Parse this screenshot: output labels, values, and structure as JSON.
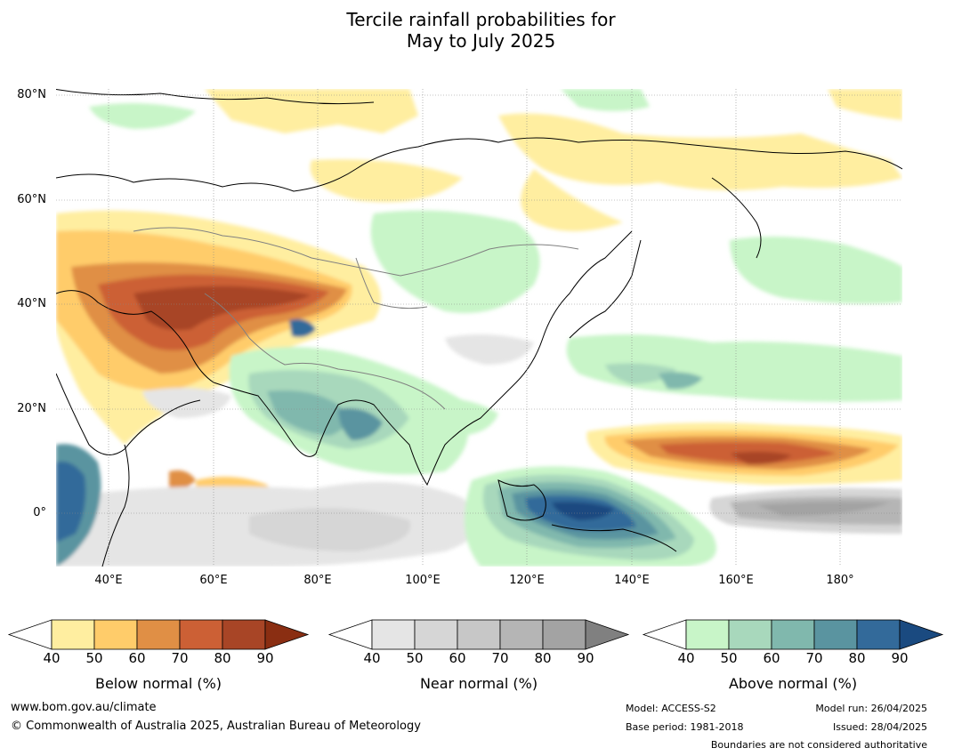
{
  "title_line1": "Tercile rainfall probabilities for",
  "title_line2": "May to July 2025",
  "map": {
    "lat_labels": [
      "80°N",
      "60°N",
      "40°N",
      "20°N",
      "0°"
    ],
    "lon_labels": [
      "40°E",
      "60°E",
      "80°E",
      "100°E",
      "120°E",
      "140°E",
      "160°E",
      "180°"
    ],
    "ocean_color": "#ffffff",
    "coast_color": "#000000",
    "border_color": "#808080"
  },
  "colorbars": [
    {
      "title": "Below normal (%)",
      "ticks": [
        "40",
        "50",
        "60",
        "70",
        "80",
        "90"
      ],
      "colors": [
        "#ffeea0",
        "#ffcc6a",
        "#e08f45",
        "#cc6035",
        "#a84526",
        "#8a2e12"
      ]
    },
    {
      "title": "Near normal (%)",
      "ticks": [
        "40",
        "50",
        "60",
        "70",
        "80",
        "90"
      ],
      "colors": [
        "#e5e5e5",
        "#d6d6d6",
        "#c7c7c7",
        "#b5b5b5",
        "#a3a3a3",
        "#808080"
      ]
    },
    {
      "title": "Above normal (%)",
      "ticks": [
        "40",
        "50",
        "60",
        "70",
        "80",
        "90"
      ],
      "colors": [
        "#c8f5c8",
        "#a8d8bc",
        "#80b8ad",
        "#5a94a0",
        "#336a9a",
        "#1a4a80"
      ]
    }
  ],
  "footer": {
    "website": "www.bom.gov.au/climate",
    "copyright": "© Commonwealth of Australia 2025, Australian Bureau of Meteorology",
    "model": "Model: ACCESS-S2",
    "base_period": "Base period: 1981-2018",
    "model_run": "Model run: 26/04/2025",
    "issued": "Issued: 28/04/2025",
    "disclaimer": "Boundaries are not considered authoritative"
  }
}
